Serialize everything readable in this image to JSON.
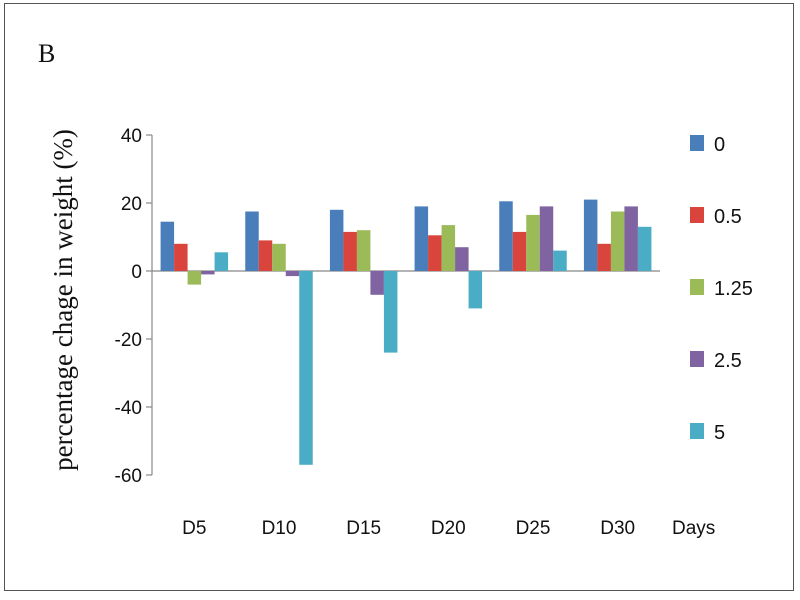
{
  "chart_data": {
    "type": "bar",
    "panel_label": "B",
    "title": "",
    "xlabel": "Days",
    "ylabel": "percentage chage in weight (%)",
    "ylim": [
      -60,
      40
    ],
    "yticks": [
      40,
      20,
      0,
      -20,
      -40,
      -60
    ],
    "grid": false,
    "legend_position": "right",
    "categories": [
      "D5",
      "D10",
      "D15",
      "D20",
      "D25",
      "D30"
    ],
    "series": [
      {
        "name": "0",
        "color": "#4a7ebb",
        "values": [
          14.5,
          17.5,
          18,
          19,
          20.5,
          21
        ]
      },
      {
        "name": "0.5",
        "color": "#d9443d",
        "values": [
          8,
          9,
          11.5,
          10.5,
          11.5,
          8
        ]
      },
      {
        "name": "1.25",
        "color": "#9bbb59",
        "values": [
          -4,
          8,
          12,
          13.5,
          16.5,
          17.5
        ]
      },
      {
        "name": "2.5",
        "color": "#8064a2",
        "values": [
          -1,
          -1.5,
          -7,
          7,
          19,
          19
        ]
      },
      {
        "name": "5",
        "color": "#4bacc6",
        "values": [
          5.5,
          -57,
          -24,
          -11,
          6,
          13
        ]
      }
    ]
  }
}
